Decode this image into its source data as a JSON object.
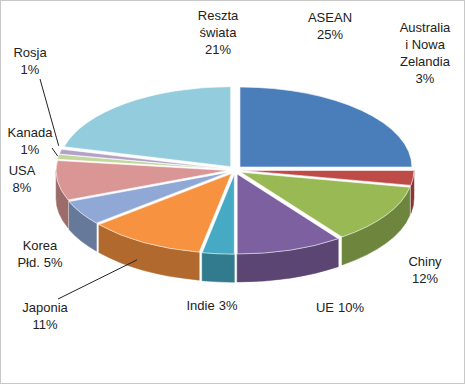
{
  "chart_data": {
    "type": "pie",
    "categories": [
      "ASEAN",
      "Australia i Nowa Zelandia",
      "Chiny",
      "UE",
      "Indie",
      "Japonia",
      "Korea Płd.",
      "USA",
      "Kanada",
      "Rosja",
      "Reszta świata"
    ],
    "values": [
      25,
      3,
      12,
      10,
      3,
      11,
      5,
      8,
      1,
      1,
      21
    ],
    "value_labels": [
      "25%",
      "3%",
      "12%",
      "10%",
      "3%",
      "11%",
      "5%",
      "8%",
      "1%",
      "1%",
      "21%"
    ],
    "colors": [
      "#4a7ebb",
      "#be4b48",
      "#98b954",
      "#7d60a0",
      "#46aac5",
      "#f69240",
      "#8fa8d6",
      "#d99694",
      "#c3d69b",
      "#b3a2c7",
      "#93cddd"
    ],
    "data_labels": true
  }
}
